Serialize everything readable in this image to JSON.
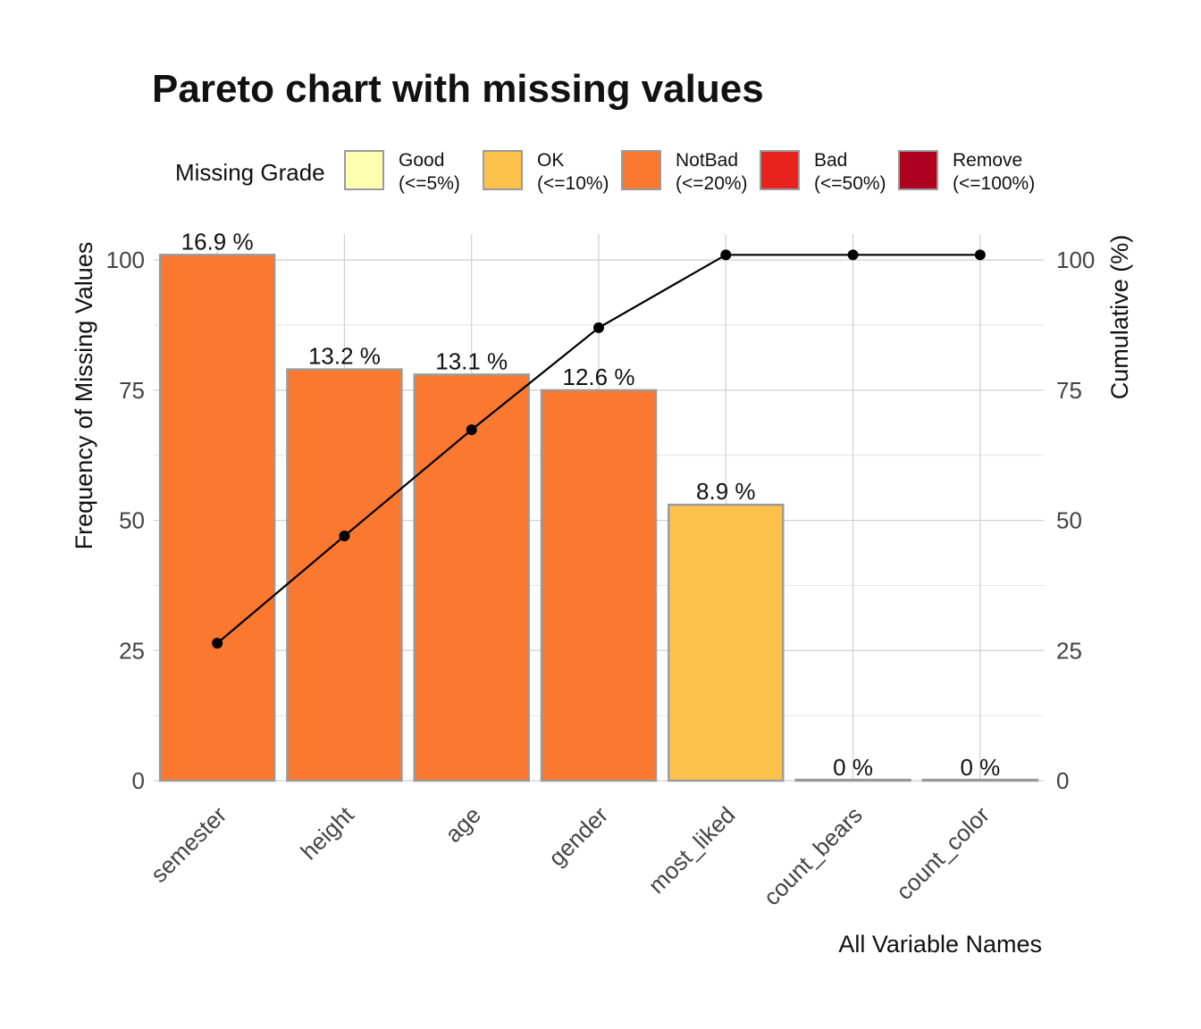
{
  "chart_data": {
    "type": "bar",
    "title": "Pareto chart with missing values",
    "xlabel": "All Variable Names",
    "ylabel": "Frequency of Missing Values",
    "y2label": "Cumulative (%)",
    "ylim": [
      0,
      105
    ],
    "y_ticks": [
      "0",
      "25",
      "50",
      "75",
      "100"
    ],
    "y2_ticks": [
      "0",
      "25",
      "50",
      "75",
      "100"
    ],
    "grid": true,
    "categories": [
      "semester",
      "height",
      "age",
      "gender",
      "most_liked",
      "count_bears",
      "count_color"
    ],
    "values": [
      101,
      79,
      78,
      75,
      53,
      0,
      0
    ],
    "bar_labels": [
      "16.9 %",
      "13.2 %",
      "13.1 %",
      "12.6 %",
      "8.9 %",
      "0 %",
      "0 %"
    ],
    "grades": [
      "NotBad",
      "NotBad",
      "NotBad",
      "NotBad",
      "OK",
      "Good",
      "Good"
    ],
    "cumulative": [
      26.4,
      47,
      67.4,
      87,
      101,
      101,
      101
    ],
    "legend": {
      "title": "Missing Grade",
      "position": "top",
      "items": [
        {
          "key": "Good",
          "label": "Good",
          "sublabel": "(<=5%)",
          "color": "#FFFFB2"
        },
        {
          "key": "OK",
          "label": "OK",
          "sublabel": "(<=10%)",
          "color": "#FEC14C"
        },
        {
          "key": "NotBad",
          "label": "NotBad",
          "sublabel": "(<=20%)",
          "color": "#FA7830"
        },
        {
          "key": "Bad",
          "label": "Bad",
          "sublabel": "(<=50%)",
          "color": "#E8231F"
        },
        {
          "key": "Remove",
          "label": "Remove",
          "sublabel": "(<=100%)",
          "color": "#B00020"
        }
      ]
    },
    "colors": {
      "bar_outline": "#9a9a9a",
      "line": "#000000"
    }
  }
}
